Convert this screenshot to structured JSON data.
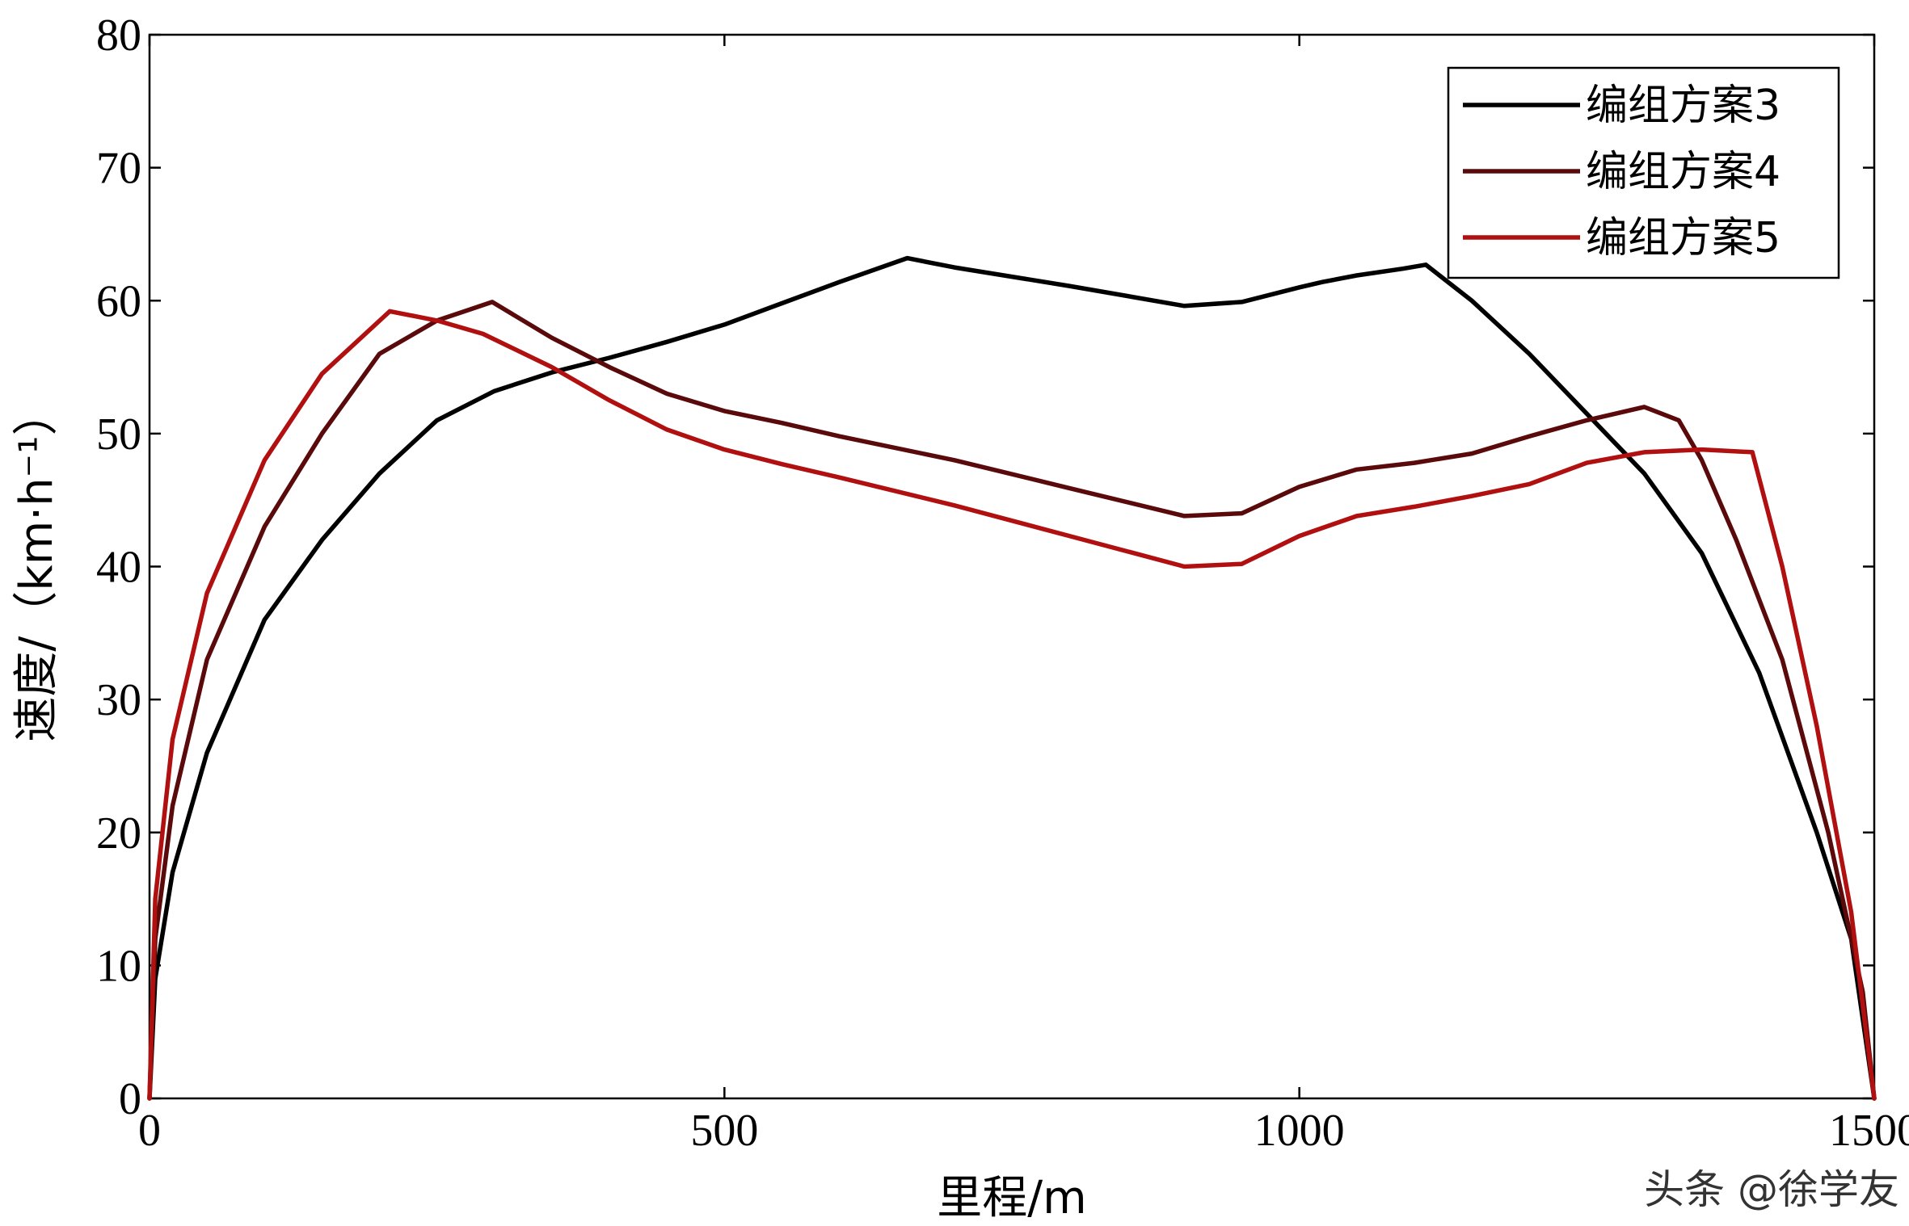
{
  "chart_data": {
    "type": "line",
    "title": "",
    "xlabel": "里程/m",
    "ylabel": "速度/（km·h⁻¹）",
    "xlim": [
      0,
      1500
    ],
    "ylim": [
      0,
      80
    ],
    "xticks": [
      0,
      500,
      1000,
      1500
    ],
    "yticks": [
      0,
      10,
      20,
      30,
      40,
      50,
      60,
      70,
      80
    ],
    "grid": false,
    "legend_position": "top-right",
    "series": [
      {
        "name": "编组方案3",
        "color": "#000000",
        "x": [
          0,
          5,
          20,
          50,
          100,
          150,
          200,
          250,
          300,
          350,
          400,
          450,
          500,
          550,
          600,
          659,
          700,
          800,
          900,
          950,
          1000,
          1020,
          1050,
          1090,
          1110,
          1150,
          1200,
          1250,
          1300,
          1350,
          1400,
          1450,
          1480,
          1500
        ],
        "y": [
          0,
          9,
          17,
          26,
          36,
          42,
          47,
          51,
          53.2,
          54.6,
          55.7,
          56.9,
          58.2,
          59.8,
          61.4,
          63.2,
          62.5,
          61.1,
          59.6,
          59.9,
          61,
          61.4,
          61.9,
          62.4,
          62.7,
          60,
          56,
          51.5,
          47,
          41,
          32,
          20,
          12,
          0
        ]
      },
      {
        "name": "编组方案4",
        "color": "#5a0a0a",
        "x": [
          0,
          5,
          20,
          50,
          100,
          150,
          200,
          250,
          298,
          350,
          400,
          450,
          500,
          550,
          600,
          700,
          800,
          900,
          950,
          1000,
          1050,
          1100,
          1150,
          1200,
          1250,
          1300,
          1330,
          1350,
          1380,
          1420,
          1460,
          1490,
          1500
        ],
        "y": [
          0,
          12,
          22,
          33,
          43,
          50,
          56,
          58.5,
          59.9,
          57.2,
          55,
          53,
          51.7,
          50.8,
          49.8,
          48,
          45.9,
          43.8,
          44,
          46,
          47.3,
          47.8,
          48.5,
          49.8,
          51,
          52,
          51,
          48,
          42,
          33,
          20,
          8,
          0
        ]
      },
      {
        "name": "编组方案5",
        "color": "#b01010",
        "x": [
          0,
          5,
          20,
          50,
          100,
          150,
          209,
          250,
          290,
          350,
          400,
          450,
          500,
          550,
          600,
          700,
          800,
          900,
          950,
          1000,
          1050,
          1100,
          1150,
          1200,
          1250,
          1300,
          1350,
          1394,
          1420,
          1450,
          1480,
          1500
        ],
        "y": [
          0,
          15,
          27,
          38,
          48,
          54.5,
          59.2,
          58.5,
          57.5,
          55,
          52.5,
          50.3,
          48.8,
          47.7,
          46.7,
          44.6,
          42.3,
          40,
          40.2,
          42.3,
          43.8,
          44.5,
          45.3,
          46.2,
          47.8,
          48.6,
          48.8,
          48.6,
          40,
          28,
          14,
          0
        ]
      }
    ]
  },
  "watermark": "头条 @徐学友"
}
